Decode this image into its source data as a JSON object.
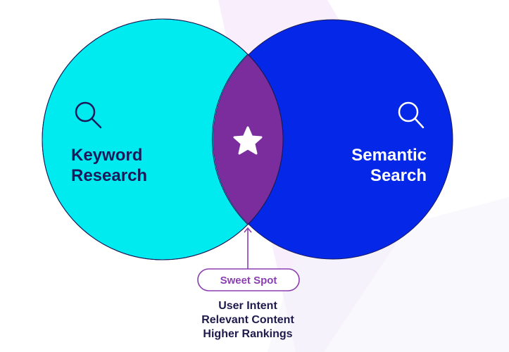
{
  "colors": {
    "keyword_circle": "#00EBF0",
    "semantic_circle": "#0527E8",
    "overlap": "#7B2D9E",
    "outline": "#1b1b55",
    "dark_text": "#1a1a5a",
    "accent_purple": "#8a3fb0",
    "background_stripe": "#f7ebfb"
  },
  "left_circle": {
    "title_line1": "Keyword",
    "title_line2": "Research",
    "icon": "search-icon"
  },
  "right_circle": {
    "title_line1": "Semantic",
    "title_line2": "Search",
    "icon": "search-icon"
  },
  "overlap": {
    "icon": "star-icon"
  },
  "callout": {
    "label": "Sweet Spot"
  },
  "benefits": [
    "User Intent",
    "Relevant Content",
    "Higher Rankings"
  ]
}
